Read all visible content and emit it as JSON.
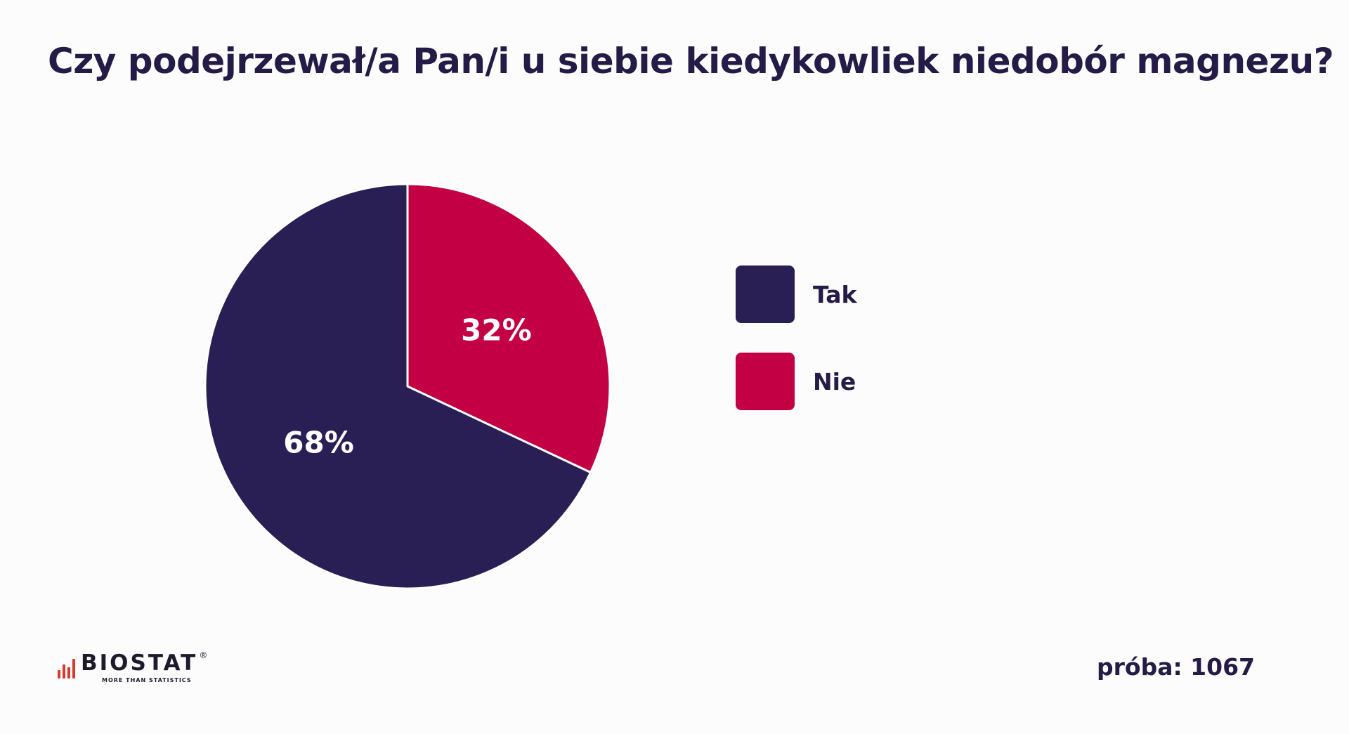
{
  "title": "Czy podejrzewał/a Pan/i u siebie kiedykowliek niedobór magnezu?",
  "chart_data": {
    "type": "pie",
    "title": "Czy podejrzewał/a Pan/i u siebie kiedykowliek niedobór magnezu?",
    "start_angle": "12 o'clock, clockwise",
    "slices": [
      {
        "label": "Nie",
        "value": 32,
        "display": "32%",
        "color": "#c20043"
      },
      {
        "label": "Tak",
        "value": 68,
        "display": "68%",
        "color": "#2a1f55"
      }
    ],
    "legend": {
      "position": "right",
      "entries": [
        {
          "label": "Tak",
          "color": "#2a1f55"
        },
        {
          "label": "Nie",
          "color": "#c20043"
        }
      ]
    }
  },
  "logo": {
    "word": "BIOSTAT",
    "registered": "®",
    "tagline": "MORE THAN STATISTICS",
    "accent": "#d63a2f"
  },
  "sample_label": "próba: 1067"
}
